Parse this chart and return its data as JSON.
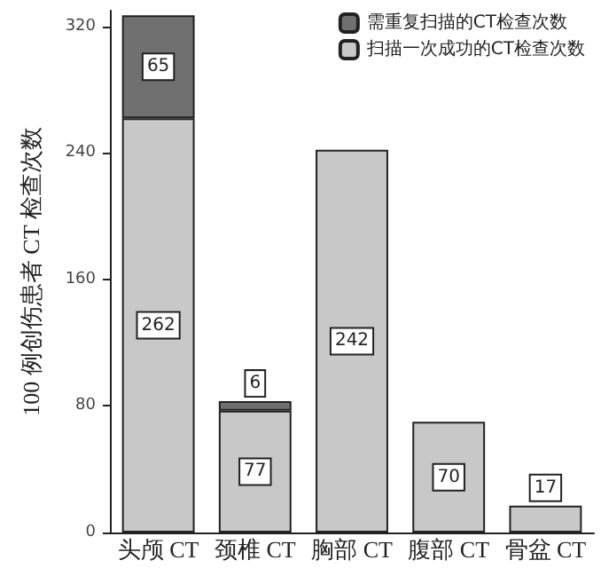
{
  "chart_data": {
    "type": "bar",
    "stacked": true,
    "ylabel": "100 例创伤患者 CT 检查次数",
    "categories": [
      "头颅 CT",
      "颈椎 CT",
      "胸部 CT",
      "腹部 CT",
      "骨盆 CT"
    ],
    "series": [
      {
        "name": "扫描一次成功的CT检查次数",
        "color": "#c8c8c8",
        "values": [
          262,
          77,
          242,
          70,
          17
        ],
        "value_labels": [
          "262",
          "77",
          "242",
          "70",
          "17"
        ]
      },
      {
        "name": "需重复扫描的CT检查次数",
        "color": "#707070",
        "values": [
          65,
          6,
          null,
          null,
          null
        ],
        "value_labels": [
          "65",
          "6",
          null,
          null,
          null
        ]
      }
    ],
    "ylim": [
      0,
      330
    ],
    "yticks": [
      0,
      80,
      160,
      240,
      320
    ],
    "grid": false,
    "legend": "top right"
  }
}
